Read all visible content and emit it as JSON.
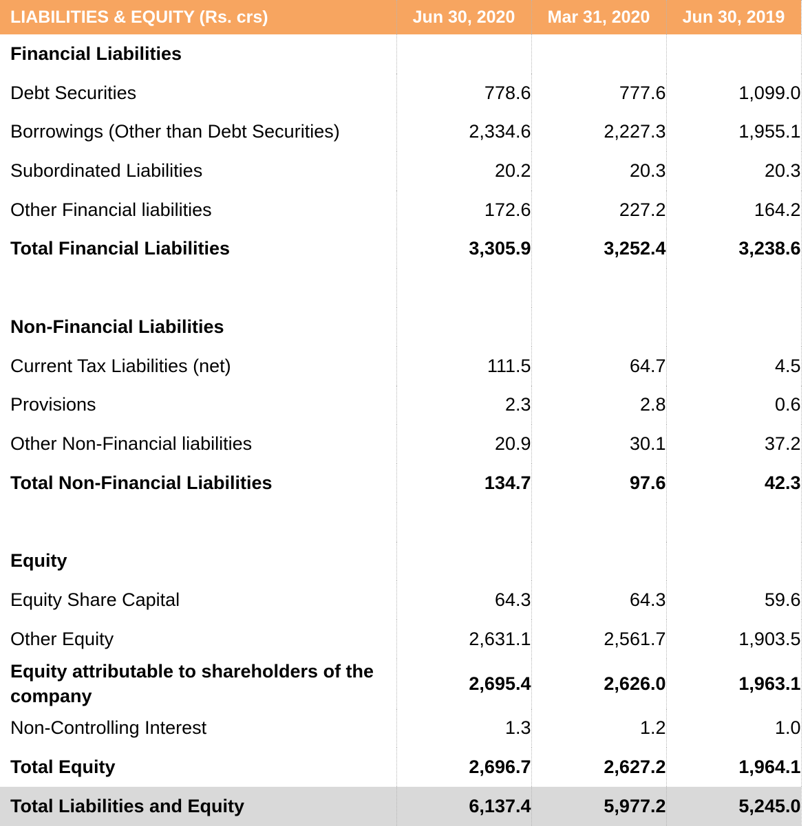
{
  "header": {
    "title": "LIABILITIES & EQUITY (Rs. crs)",
    "columns": [
      "Jun 30, 2020",
      "Mar 31, 2020",
      "Jun 30, 2019"
    ]
  },
  "sections": {
    "financial": {
      "title": "Financial Liabilities",
      "rows": [
        {
          "label": "Debt Securities",
          "v": [
            "778.6",
            "777.6",
            "1,099.0"
          ]
        },
        {
          "label": "Borrowings (Other than Debt Securities)",
          "v": [
            "2,334.6",
            "2,227.3",
            "1,955.1"
          ]
        },
        {
          "label": "Subordinated Liabilities",
          "v": [
            "20.2",
            "20.3",
            "20.3"
          ]
        },
        {
          "label": "Other Financial liabilities",
          "v": [
            "172.6",
            "227.2",
            "164.2"
          ]
        }
      ],
      "total": {
        "label": "Total Financial Liabilities",
        "v": [
          "3,305.9",
          "3,252.4",
          "3,238.6"
        ]
      }
    },
    "non_financial": {
      "title": "Non-Financial Liabilities",
      "rows": [
        {
          "label": "Current Tax Liabilities (net)",
          "v": [
            "111.5",
            "64.7",
            "4.5"
          ]
        },
        {
          "label": "Provisions",
          "v": [
            "2.3",
            "2.8",
            "0.6"
          ]
        },
        {
          "label": "Other Non-Financial liabilities",
          "v": [
            "20.9",
            "30.1",
            "37.2"
          ]
        }
      ],
      "total": {
        "label": "Total Non-Financial Liabilities",
        "v": [
          "134.7",
          "97.6",
          "42.3"
        ]
      }
    },
    "equity": {
      "title": "Equity",
      "rows": [
        {
          "label": "Equity Share Capital",
          "v": [
            "64.3",
            "64.3",
            "59.6"
          ]
        },
        {
          "label": "Other Equity",
          "v": [
            "2,631.1",
            "2,561.7",
            "1,903.5"
          ]
        }
      ],
      "attributable": {
        "label": "Equity attributable to shareholders of the company",
        "v": [
          "2,695.4",
          "2,626.0",
          "1,963.1"
        ]
      },
      "nci": {
        "label": "Non-Controlling Interest",
        "v": [
          "1.3",
          "1.2",
          "1.0"
        ]
      },
      "total": {
        "label": "Total Equity",
        "v": [
          "2,696.7",
          "2,627.2",
          "1,964.1"
        ]
      }
    }
  },
  "grand_total": {
    "label": "Total Liabilities and Equity",
    "v": [
      "6,137.4",
      "5,977.2",
      "5,245.0"
    ]
  },
  "colors": {
    "header_bg": "#f7a560",
    "grand_total_bg": "#d9d9d9"
  }
}
